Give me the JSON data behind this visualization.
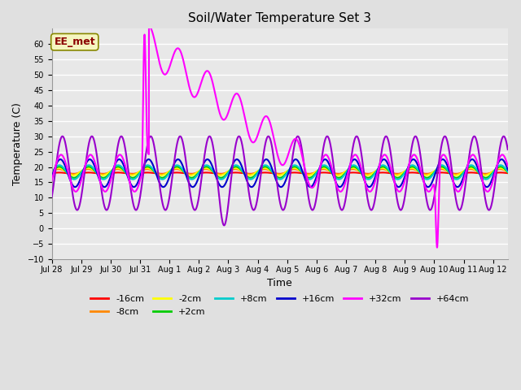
{
  "title": "Soil/Water Temperature Set 3",
  "xlabel": "Time",
  "ylabel": "Temperature (C)",
  "ylim": [
    -10,
    65
  ],
  "yticks": [
    -10,
    -5,
    0,
    5,
    10,
    15,
    20,
    25,
    30,
    35,
    40,
    45,
    50,
    55,
    60
  ],
  "background_color": "#e0e0e0",
  "plot_bg_color": "#e8e8e8",
  "grid_color": "#ffffff",
  "annotation_text": "EE_met",
  "annotation_color": "#8B0000",
  "annotation_bg": "#f5f5c0",
  "series": {
    "m16cm": {
      "label": "-16cm",
      "color": "#ff0000",
      "lw": 1.5
    },
    "m8cm": {
      "label": "-8cm",
      "color": "#ff8800",
      "lw": 1.5
    },
    "m2cm": {
      "label": "-2cm",
      "color": "#ffff00",
      "lw": 1.5
    },
    "p2cm": {
      "label": "+2cm",
      "color": "#00cc00",
      "lw": 1.5
    },
    "p8cm": {
      "label": "+8cm",
      "color": "#00cccc",
      "lw": 1.5
    },
    "p16cm": {
      "label": "+16cm",
      "color": "#0000cc",
      "lw": 1.5
    },
    "p32cm": {
      "label": "+32cm",
      "color": "#ff00ff",
      "lw": 1.5
    },
    "p64cm": {
      "label": "+64cm",
      "color": "#9900cc",
      "lw": 1.5
    }
  },
  "xstart": 0,
  "xend": 15.5,
  "xtick_positions": [
    0,
    1,
    2,
    3,
    4,
    5,
    6,
    7,
    8,
    9,
    10,
    11,
    12,
    13,
    14,
    15
  ],
  "xtick_labels": [
    "Jul 28",
    "Jul 29",
    "Jul 30",
    "Jul 31",
    "Aug 1",
    "Aug 2",
    "Aug 3",
    "Aug 4",
    "Aug 5",
    "Aug 6",
    "Aug 7",
    "Aug 8",
    "Aug 9",
    "Aug 10",
    "Aug 11",
    "Aug 12"
  ],
  "base_temp": 18.0,
  "period": 1.0,
  "p32_spike_day": 3.15,
  "p32_spike_peak": 60.0,
  "p32_spike_dip": 54.5,
  "p32_descent_start": 3.3,
  "p32_descent_end": 9.0,
  "p32_neg_spike_day": 13.1,
  "p32_neg_spike_val": -7.5,
  "p64_amplitude": 12.0,
  "p64_trough_day": 5.85,
  "p64_trough_extra": -5.0
}
